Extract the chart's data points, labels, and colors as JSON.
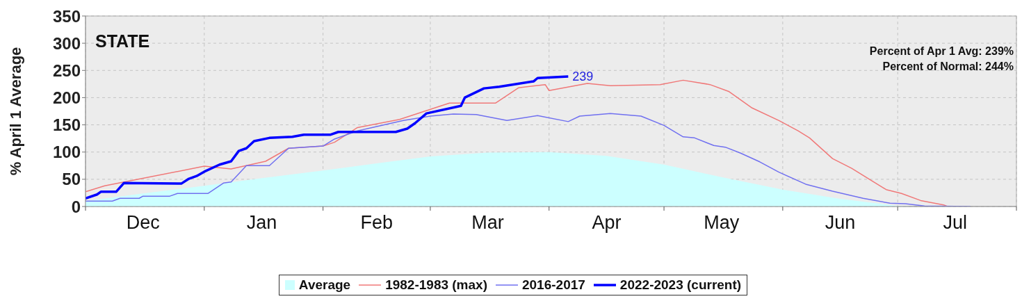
{
  "chart_data": {
    "type": "line",
    "title": "STATE",
    "ylabel": "% April 1 Average",
    "xlim": [
      "2022-12-01",
      "2023-08-01"
    ],
    "ylim": [
      0,
      350
    ],
    "yticks": [
      0,
      50,
      100,
      150,
      200,
      250,
      300,
      350
    ],
    "xticks": [
      {
        "value": "2022-12-01",
        "label": null
      },
      {
        "value": "2022-12-16",
        "label": "Dec"
      },
      {
        "value": "2023-01-01",
        "label": null
      },
      {
        "value": "2023-01-16",
        "label": "Jan"
      },
      {
        "value": "2023-02-01",
        "label": null
      },
      {
        "value": "2023-02-15",
        "label": "Feb"
      },
      {
        "value": "2023-03-01",
        "label": null
      },
      {
        "value": "2023-03-16",
        "label": "Mar"
      },
      {
        "value": "2023-04-01",
        "label": null
      },
      {
        "value": "2023-04-16",
        "label": "Apr"
      },
      {
        "value": "2023-05-01",
        "label": null
      },
      {
        "value": "2023-05-16",
        "label": "May"
      },
      {
        "value": "2023-06-01",
        "label": null
      },
      {
        "value": "2023-06-16",
        "label": "Jun"
      },
      {
        "value": "2023-07-01",
        "label": null
      },
      {
        "value": "2023-07-16",
        "label": "Jul"
      },
      {
        "value": "2023-08-01",
        "label": null
      }
    ],
    "grid": true,
    "legend": "bottom",
    "marker": "none",
    "line_style": "solid",
    "annotations": [
      "Percent of Apr 1 Avg: 239%",
      "Percent of Normal: 244%",
      {
        "text": "239",
        "x": "2023-04-06",
        "y": 239
      }
    ],
    "series": [
      {
        "name": "Average",
        "type": "area",
        "color": "#ccffff",
        "x": [
          "2022-12-01",
          "2022-12-16",
          "2023-01-01",
          "2023-01-16",
          "2023-02-01",
          "2023-02-16",
          "2023-03-01",
          "2023-03-16",
          "2023-04-01",
          "2023-04-16",
          "2023-05-01",
          "2023-05-16",
          "2023-06-01",
          "2023-06-16",
          "2023-07-01",
          "2023-07-06"
        ],
        "values": [
          10,
          24,
          38,
          52,
          66,
          80,
          92,
          99,
          100,
          93,
          77,
          54,
          31,
          14,
          1,
          0
        ]
      },
      {
        "name": "1982-1983 (max)",
        "color": "#f07878",
        "x": [
          "2022-12-01",
          "2022-12-06",
          "2023-01-01",
          "2023-01-08",
          "2023-01-17",
          "2023-01-23",
          "2023-02-01",
          "2023-02-04",
          "2023-02-10",
          "2023-02-21",
          "2023-03-06",
          "2023-03-18",
          "2023-03-24",
          "2023-03-31",
          "2023-04-01",
          "2023-04-11",
          "2023-04-17",
          "2023-04-30",
          "2023-05-06",
          "2023-05-13",
          "2023-05-18",
          "2023-05-24",
          "2023-05-31",
          "2023-06-05",
          "2023-06-08",
          "2023-06-14",
          "2023-06-19",
          "2023-06-28",
          "2023-07-02",
          "2023-07-07",
          "2023-07-13",
          "2023-07-14"
        ],
        "values": [
          27,
          38,
          74,
          69,
          83,
          107,
          111,
          118,
          145,
          160,
          190,
          190,
          218,
          224,
          213,
          226,
          222,
          224,
          232,
          224,
          211,
          181,
          158,
          139,
          126,
          88,
          70,
          31,
          24,
          11,
          3,
          0
        ]
      },
      {
        "name": "2016-2017",
        "color": "#7070f0",
        "x": [
          "2022-12-01",
          "2022-12-08",
          "2022-12-10",
          "2022-12-15",
          "2022-12-16",
          "2022-12-23",
          "2022-12-25",
          "2023-01-02",
          "2023-01-06",
          "2023-01-08",
          "2023-01-12",
          "2023-01-18",
          "2023-01-23",
          "2023-02-01",
          "2023-02-04",
          "2023-02-10",
          "2023-02-22",
          "2023-03-01",
          "2023-03-07",
          "2023-03-13",
          "2023-03-21",
          "2023-03-29",
          "2023-04-06",
          "2023-04-09",
          "2023-04-17",
          "2023-04-25",
          "2023-05-01",
          "2023-05-06",
          "2023-05-09",
          "2023-05-14",
          "2023-05-17",
          "2023-05-21",
          "2023-05-26",
          "2023-05-31",
          "2023-06-07",
          "2023-06-14",
          "2023-06-22",
          "2023-06-29",
          "2023-07-03",
          "2023-07-08",
          "2023-07-20"
        ],
        "values": [
          10,
          10,
          15,
          15,
          19,
          19,
          24,
          24,
          43,
          45,
          75,
          75,
          107,
          111,
          124,
          139,
          158,
          166,
          170,
          169,
          158,
          167,
          156,
          166,
          171,
          166,
          149,
          128,
          126,
          112,
          109,
          98,
          82,
          63,
          41,
          28,
          15,
          6,
          5,
          1,
          0
        ]
      },
      {
        "name": "2022-2023 (current)",
        "color": "#0000ff",
        "x": [
          "2022-12-01",
          "2022-12-04",
          "2022-12-05",
          "2022-12-09",
          "2022-12-11",
          "2022-12-26",
          "2022-12-28",
          "2022-12-30",
          "2023-01-01",
          "2023-01-05",
          "2023-01-08",
          "2023-01-10",
          "2023-01-12",
          "2023-01-14",
          "2023-01-18",
          "2023-01-24",
          "2023-01-27",
          "2023-02-03",
          "2023-02-05",
          "2023-02-20",
          "2023-02-23",
          "2023-02-25",
          "2023-02-28",
          "2023-03-09",
          "2023-03-10",
          "2023-03-15",
          "2023-03-19",
          "2023-03-28",
          "2023-03-29",
          "2023-04-06"
        ],
        "values": [
          15,
          22,
          27,
          27,
          43,
          42,
          51,
          56,
          64,
          77,
          83,
          102,
          107,
          120,
          126,
          128,
          132,
          132,
          137,
          137,
          143,
          153,
          171,
          185,
          200,
          217,
          220,
          230,
          236,
          239
        ]
      }
    ]
  }
}
